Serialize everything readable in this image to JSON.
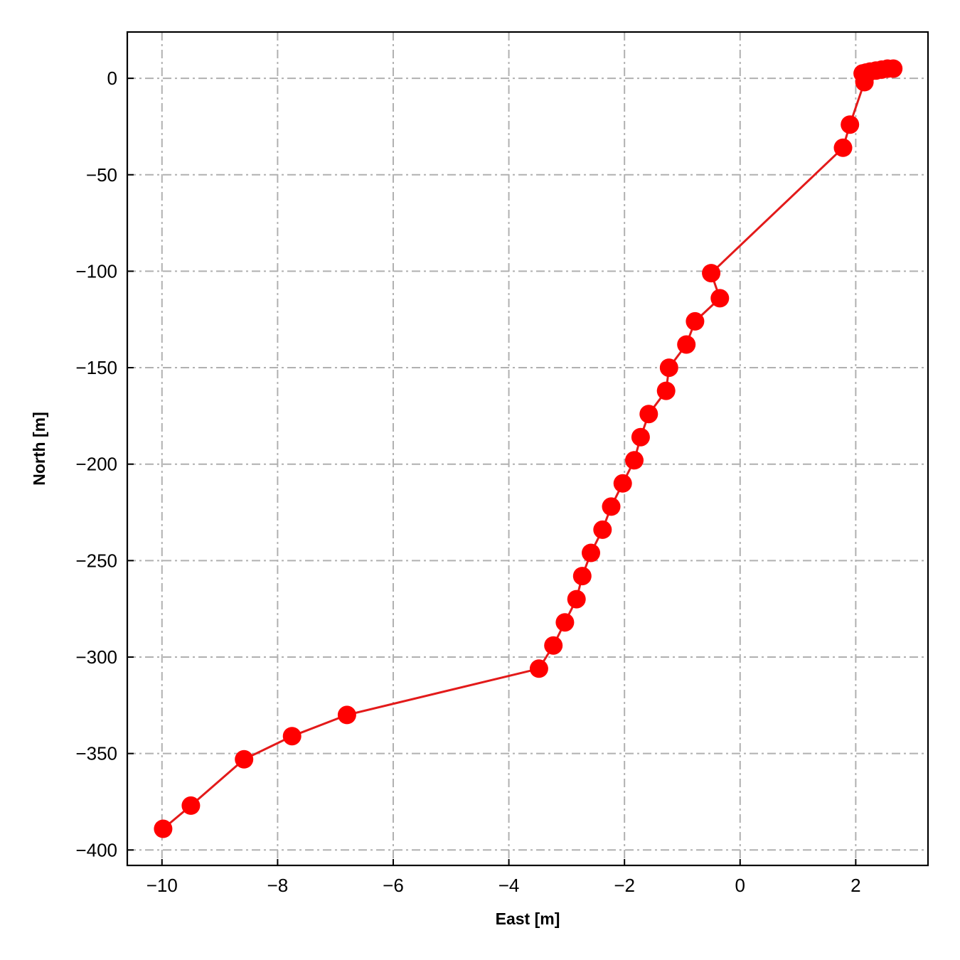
{
  "chart_data": {
    "type": "line",
    "title": "",
    "xlabel": "East [m]",
    "ylabel": "North [m]",
    "xlim": [
      -10.6,
      3.25
    ],
    "ylim": [
      -408,
      24
    ],
    "xticks": [
      -10,
      -8,
      -6,
      -4,
      -2,
      0,
      2
    ],
    "yticks": [
      0,
      -50,
      -100,
      -150,
      -200,
      -250,
      -300,
      -350,
      -400
    ],
    "grid": true,
    "colors": {
      "series": "#ff0000",
      "line": "#e31a1a",
      "grid": "#b0b0b0"
    },
    "series": [
      {
        "marker": "circle",
        "x": [
          2.65,
          2.55,
          2.45,
          2.35,
          2.25,
          2.18,
          2.12,
          2.15,
          1.9,
          1.78,
          -0.5,
          -0.35,
          -0.78,
          -0.93,
          -1.23,
          -1.28,
          -1.58,
          -1.72,
          -1.83,
          -2.03,
          -2.23,
          -2.38,
          -2.58,
          -2.73,
          -2.83,
          -3.03,
          -3.23,
          -3.48,
          -6.8,
          -7.75,
          -8.58,
          -9.5,
          -9.98
        ],
        "y": [
          5,
          5,
          4.5,
          4,
          3.5,
          3,
          2.5,
          -2,
          -24,
          -36,
          -101,
          -114,
          -126,
          -138,
          -150,
          -162,
          -174,
          -186,
          -198,
          -210,
          -222,
          -234,
          -246,
          -258,
          -270,
          -282,
          -294,
          -306,
          -330,
          -341,
          -353,
          -377,
          -389
        ]
      }
    ]
  }
}
